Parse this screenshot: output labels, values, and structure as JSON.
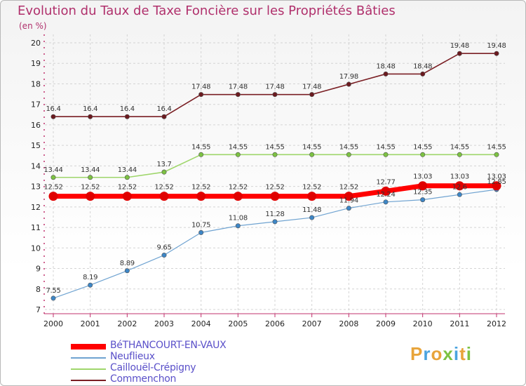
{
  "title": "Evolution du Taux de Taxe Foncière sur les Propriétés Bâties",
  "subtitle": "(en %)",
  "logo": {
    "letters": [
      "P",
      "r",
      "o",
      "x",
      "i",
      "t",
      "i"
    ],
    "colors": [
      "#e8a43a",
      "#4aa3df",
      "#e8a43a",
      "#7cc242",
      "#4aa3df",
      "#e8a43a",
      "#7cc242"
    ]
  },
  "chart_data": {
    "type": "line",
    "title": "Evolution du Taux de Taxe Foncière sur les Propriétés Bâties",
    "ylabel": "(en %)",
    "xlabel": "",
    "x": [
      "2000",
      "2001",
      "2002",
      "2003",
      "2004",
      "2005",
      "2006",
      "2007",
      "2008",
      "2009",
      "2010",
      "2011",
      "2012"
    ],
    "ylim": [
      7,
      20
    ],
    "yticks": [
      "7",
      "8",
      "9",
      "10",
      "11",
      "12",
      "13",
      "14",
      "15",
      "16",
      "17",
      "18",
      "19",
      "20"
    ],
    "grid": true,
    "legend_position": "bottom-left",
    "series": [
      {
        "name": "Commenchon",
        "color": "#7a1f24",
        "marker": "#6b1a1f",
        "values": [
          16.4,
          16.4,
          16.4,
          16.4,
          17.48,
          17.48,
          17.48,
          17.48,
          17.98,
          18.48,
          18.48,
          19.48,
          19.48
        ],
        "labels": [
          "16.4",
          "16.4",
          "16.4",
          "16.4",
          "17.48",
          "17.48",
          "17.48",
          "17.48",
          "17.98",
          "18.48",
          "18.48",
          "19.48",
          "19.48"
        ]
      },
      {
        "name": "Caillouël-Crépigny",
        "color": "#9fd66b",
        "marker": "#7cc242",
        "values": [
          13.44,
          13.44,
          13.44,
          13.7,
          14.55,
          14.55,
          14.55,
          14.55,
          14.55,
          14.55,
          14.55,
          14.55,
          14.55
        ],
        "labels": [
          "13.44",
          "13.44",
          "13.44",
          "13.7",
          "14.55",
          "14.55",
          "14.55",
          "14.55",
          "14.55",
          "14.55",
          "14.55",
          "14.55",
          "14.55"
        ]
      },
      {
        "name": "Neuflieux",
        "color": "#6fa3d1",
        "marker": "#3d86c6",
        "values": [
          7.55,
          8.19,
          8.89,
          9.65,
          10.75,
          11.08,
          11.28,
          11.48,
          11.94,
          12.24,
          12.35,
          12.6,
          12.85
        ],
        "labels": [
          "7.55",
          "8.19",
          "8.89",
          "9.65",
          "10.75",
          "11.08",
          "11.28",
          "11.48",
          "11.94",
          "12.24",
          "12.35",
          "12.6",
          "12.85"
        ]
      },
      {
        "name": "BéTHANCOURT-EN-VAUX",
        "color": "#ff0000",
        "marker": "#e00000",
        "values": [
          12.52,
          12.52,
          12.52,
          12.52,
          12.52,
          12.52,
          12.52,
          12.52,
          12.52,
          12.77,
          13.03,
          13.03,
          13.03
        ],
        "labels": [
          "12.52",
          "12.52",
          "12.52",
          "12.52",
          "12.52",
          "12.52",
          "12.52",
          "12.52",
          "12.52",
          "12.77",
          "13.03",
          "13.03",
          "13.03"
        ]
      }
    ],
    "legend_order": [
      "BéTHANCOURT-EN-VAUX",
      "Neuflieux",
      "Caillouël-Crépigny",
      "Commenchon"
    ]
  }
}
